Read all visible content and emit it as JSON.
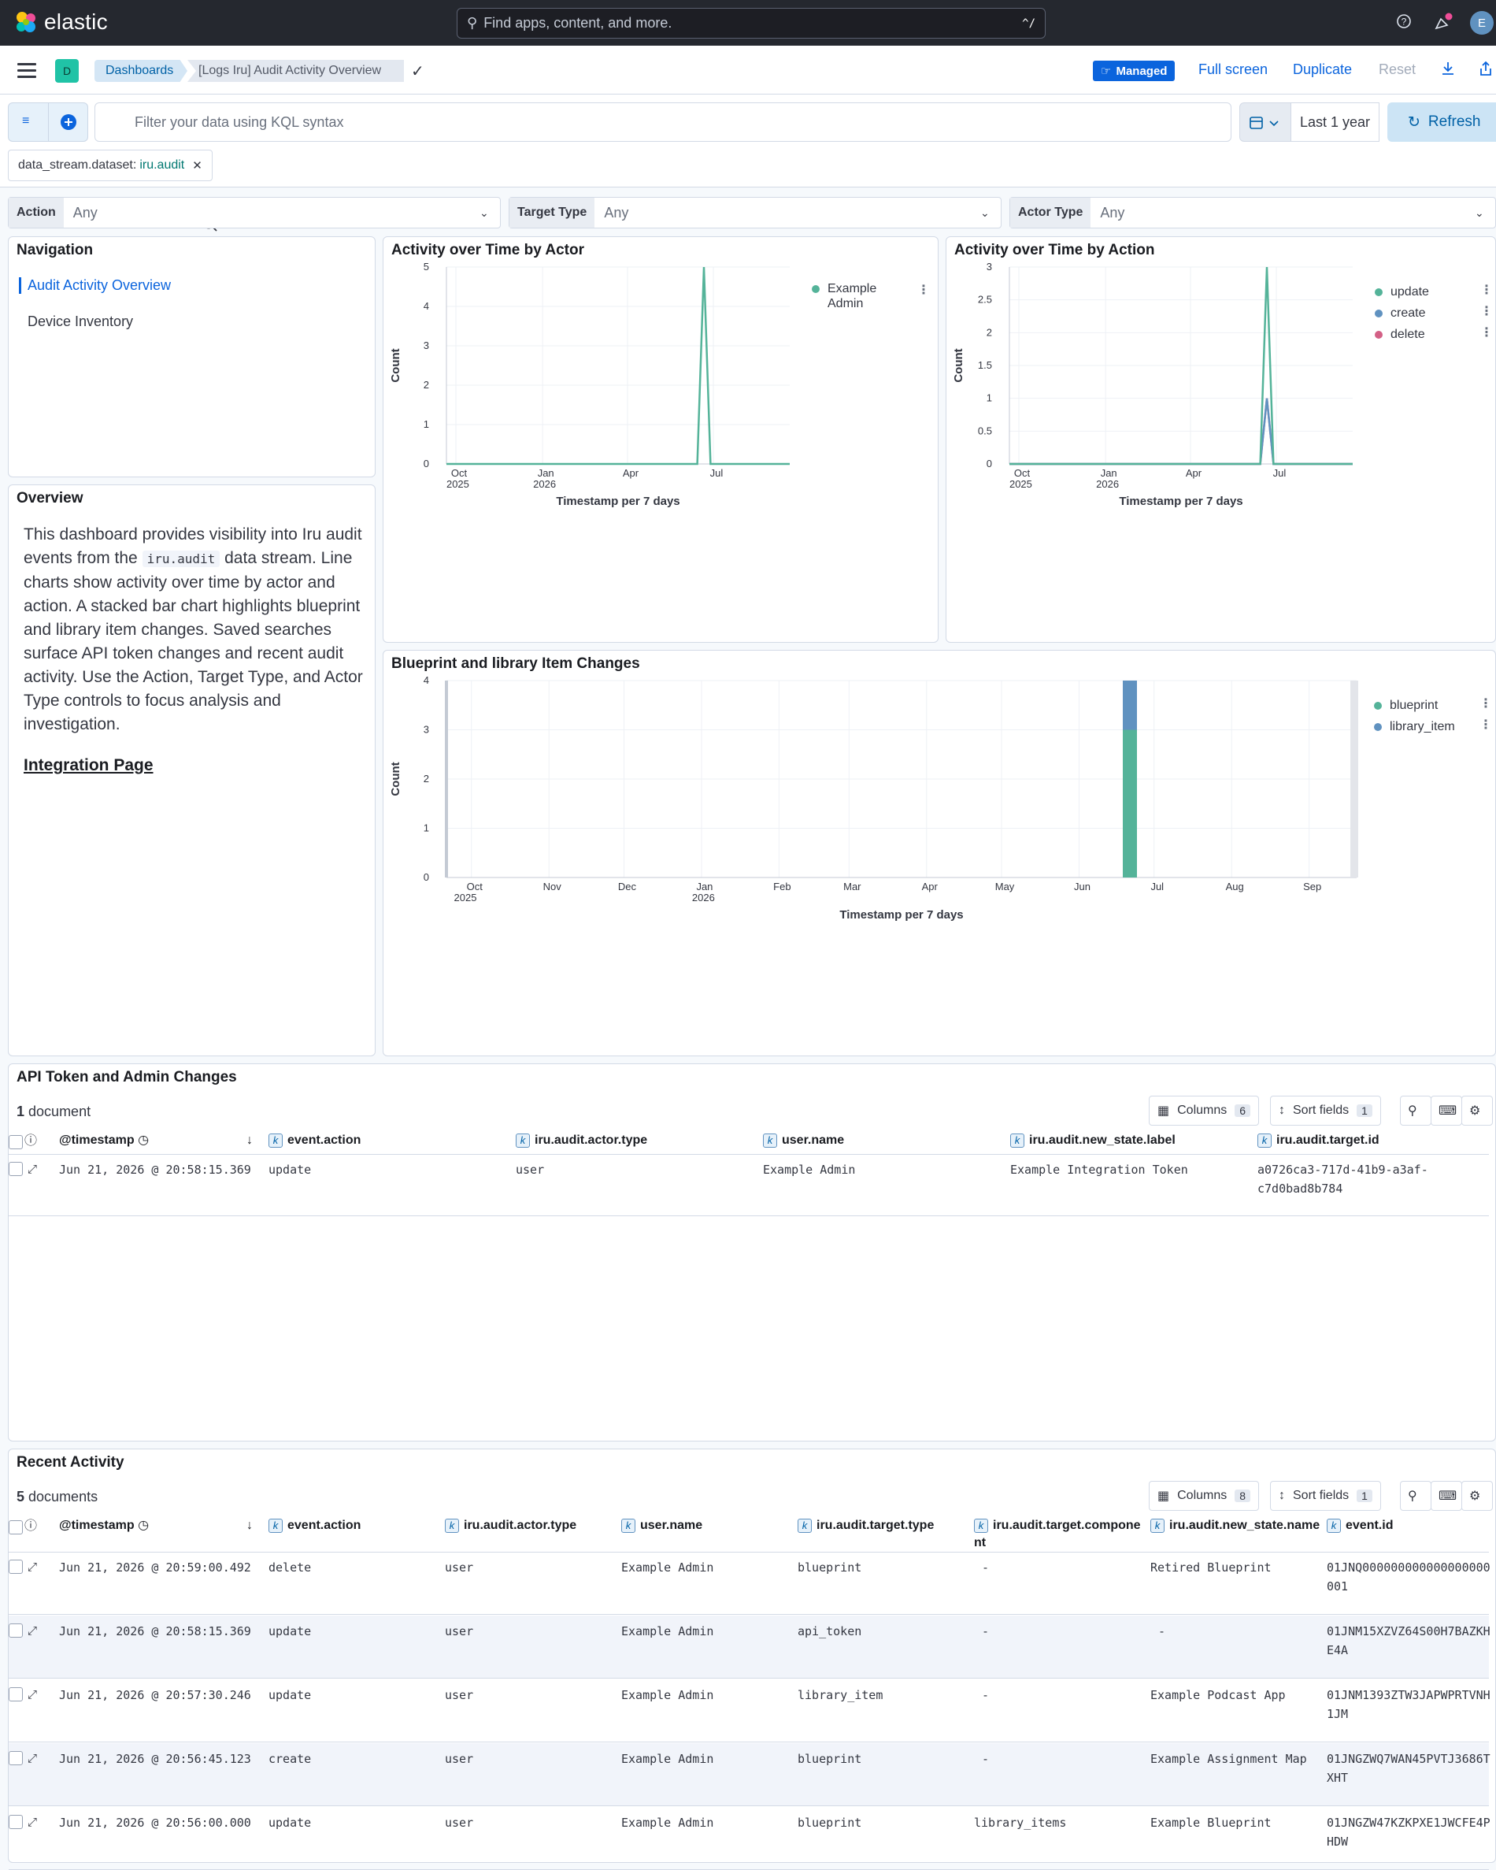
{
  "app": {
    "name": "elastic"
  },
  "global_search": {
    "placeholder": "Find apps, content, and more.",
    "shortcut": "^/"
  },
  "user": {
    "initial": "E"
  },
  "breadcrumbs": {
    "space_initial": "D",
    "root": "Dashboards",
    "current": "[Logs Iru] Audit Activity Overview"
  },
  "header_actions": {
    "managed": "Managed",
    "full_screen": "Full screen",
    "duplicate": "Duplicate",
    "reset": "Reset"
  },
  "query": {
    "placeholder": "Filter your data using KQL syntax",
    "time_range": "Last 1 year",
    "refresh": "Refresh"
  },
  "filter_pill": {
    "field": "data_stream.dataset:",
    "value": "iru.audit"
  },
  "controls": [
    {
      "label": "Action",
      "value": "Any"
    },
    {
      "label": "Target Type",
      "value": "Any"
    },
    {
      "label": "Actor Type",
      "value": "Any"
    }
  ],
  "navigation": {
    "title": "Navigation",
    "items": [
      "Audit Activity Overview",
      "Device Inventory"
    ]
  },
  "overview": {
    "title": "Overview",
    "text_before": "This dashboard provides visibility into Iru audit events from the",
    "code": "iru.audit",
    "text_after": "data stream. Line charts show activity over time by actor and action. A stacked bar chart highlights blueprint and library item changes. Saved searches surface API token changes and recent audit activity. Use the Action, Target Type, and Actor Type controls to focus analysis and investigation.",
    "link": "Integration Page"
  },
  "chart_data": [
    {
      "type": "line",
      "title": "Activity over Time by Actor",
      "xlabel": "Timestamp per 7 days",
      "ylabel": "Count",
      "yticks": [
        "0",
        "1",
        "2",
        "3",
        "4",
        "5"
      ],
      "ylim": [
        0,
        5
      ],
      "xticks": [
        {
          "label": "Oct",
          "sub": "2025"
        },
        {
          "label": "Jan",
          "sub": "2026"
        },
        {
          "label": "Apr",
          "sub": ""
        },
        {
          "label": "Jul",
          "sub": ""
        }
      ],
      "x": [
        "2025-09-21",
        "2026-06-07",
        "2026-06-14",
        "2026-06-21",
        "2026-06-28",
        "2026-09-20"
      ],
      "series": [
        {
          "name": "Example Admin",
          "color": "#54b399",
          "values": [
            0,
            0,
            0,
            5,
            0,
            0
          ]
        }
      ],
      "legend": "top-right"
    },
    {
      "type": "line",
      "title": "Activity over Time by Action",
      "xlabel": "Timestamp per 7 days",
      "ylabel": "Count",
      "yticks": [
        "0",
        "0.5",
        "1",
        "1.5",
        "2",
        "2.5",
        "3"
      ],
      "ylim": [
        0,
        3
      ],
      "xticks": [
        {
          "label": "Oct",
          "sub": "2025"
        },
        {
          "label": "Jan",
          "sub": "2026"
        },
        {
          "label": "Apr",
          "sub": ""
        },
        {
          "label": "Jul",
          "sub": ""
        }
      ],
      "x": [
        "2025-09-21",
        "2026-06-07",
        "2026-06-14",
        "2026-06-21",
        "2026-06-28",
        "2026-09-20"
      ],
      "series": [
        {
          "name": "update",
          "color": "#54b399",
          "values": [
            0,
            0,
            0,
            3,
            0,
            0
          ]
        },
        {
          "name": "create",
          "color": "#6092c0",
          "values": [
            0,
            0,
            0,
            1,
            0,
            0
          ]
        },
        {
          "name": "delete",
          "color": "#d36086",
          "values": [
            0,
            0,
            0,
            1,
            0,
            0
          ]
        }
      ],
      "legend": "top-right"
    },
    {
      "type": "bar",
      "stacked": true,
      "title": "Blueprint and library Item Changes",
      "xlabel": "Timestamp per 7 days",
      "ylabel": "Count",
      "yticks": [
        "0",
        "1",
        "2",
        "3",
        "4"
      ],
      "ylim": [
        0,
        4
      ],
      "xticks": [
        {
          "label": "Oct",
          "sub": ""
        },
        {
          "label": "Nov",
          "sub": ""
        },
        {
          "label": "Dec",
          "sub": ""
        },
        {
          "label": "Jan",
          "sub": "2026"
        },
        {
          "label": "Feb",
          "sub": ""
        },
        {
          "label": "Mar",
          "sub": ""
        },
        {
          "label": "Apr",
          "sub": ""
        },
        {
          "label": "May",
          "sub": ""
        },
        {
          "label": "Jun",
          "sub": ""
        },
        {
          "label": "Jul",
          "sub": ""
        },
        {
          "label": "Aug",
          "sub": ""
        },
        {
          "label": "Sep",
          "sub": ""
        }
      ],
      "xstart_label": "2025",
      "categories": [
        "2026-06-21"
      ],
      "series": [
        {
          "name": "blueprint",
          "color": "#54b399",
          "values": [
            3
          ]
        },
        {
          "name": "library_item",
          "color": "#6092c0",
          "values": [
            1
          ]
        }
      ],
      "legend": "top-right"
    }
  ],
  "api_table": {
    "title": "API Token and Admin Changes",
    "count": "1",
    "count_label": "document",
    "columns_label": "Columns",
    "columns_count": "6",
    "sort_label": "Sort fields",
    "sort_count": "1",
    "headers": [
      "@timestamp",
      "event.action",
      "iru.audit.actor.type",
      "user.name",
      "iru.audit.new_state.label",
      "iru.audit.target.id"
    ],
    "rows": [
      [
        "Jun 21, 2026 @ 20:58:15.369",
        "update",
        "user",
        "Example Admin",
        "Example Integration Token",
        "a0726ca3-717d-41b9-a3af-",
        "c7d0bad8b784"
      ]
    ]
  },
  "recent_table": {
    "title": "Recent Activity",
    "count": "5",
    "count_label": "documents",
    "columns_label": "Columns",
    "columns_count": "8",
    "sort_label": "Sort fields",
    "sort_count": "1",
    "headers": [
      "@timestamp",
      "event.action",
      "iru.audit.actor.type",
      "user.name",
      "iru.audit.target.type",
      "iru.audit.target.compone",
      "iru.audit.new_state.name",
      "event.id"
    ],
    "header_wrap": "nt",
    "rows": [
      [
        "Jun 21, 2026 @ 20:59:00.492",
        "delete",
        "user",
        "Example Admin",
        "blueprint",
        "-",
        "Retired Blueprint",
        "01JNQ000000000000000000",
        "001"
      ],
      [
        "Jun 21, 2026 @ 20:58:15.369",
        "update",
        "user",
        "Example Admin",
        "api_token",
        "-",
        "-",
        "01JNM15XZVZ64S00H7BAZKH",
        "E4A"
      ],
      [
        "Jun 21, 2026 @ 20:57:30.246",
        "update",
        "user",
        "Example Admin",
        "library_item",
        "-",
        "Example Podcast App",
        "01JNM1393ZTW3JAPWPRTVNH",
        "1JM"
      ],
      [
        "Jun 21, 2026 @ 20:56:45.123",
        "create",
        "user",
        "Example Admin",
        "blueprint",
        "-",
        "Example Assignment Map",
        "01JNGZWQ7WAN45PVTJ3686T",
        "XHT"
      ],
      [
        "Jun 21, 2026 @ 20:56:00.000",
        "update",
        "user",
        "Example Admin",
        "blueprint",
        "library_items",
        "Example Blueprint",
        "01JNGZW47KZKPXE1JWCFE4P",
        "HDW"
      ]
    ]
  }
}
